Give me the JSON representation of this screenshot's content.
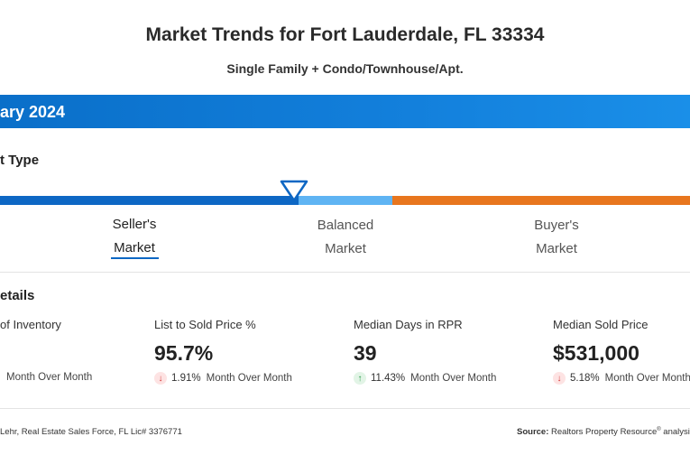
{
  "header": {
    "title": "Market Trends for Fort Lauderdale, FL 33334",
    "subtitle": "Single Family + Condo/Townhouse/Apt."
  },
  "month_bar": {
    "text": "ary 2024",
    "color": "#1380dc"
  },
  "market_type": {
    "heading": "t Type",
    "selected": "seller",
    "segments": [
      {
        "key": "seller",
        "line1": "Seller's",
        "line2": "Market",
        "color": "#0d67c4"
      },
      {
        "key": "balanced",
        "line1": "Balanced",
        "line2": "Market",
        "color": "#5fb4f3"
      },
      {
        "key": "buyer",
        "line1": "Buyer's",
        "line2": "Market",
        "color": "#e8761e"
      }
    ]
  },
  "details": {
    "heading": "etails",
    "metrics": [
      {
        "label": "of Inventory",
        "value": "",
        "change_pct": "",
        "change_dir": "",
        "change_text": "Month Over Month"
      },
      {
        "label": "List to Sold Price %",
        "value": "95.7%",
        "change_pct": "1.91%",
        "change_dir": "down",
        "change_text": "Month Over Month"
      },
      {
        "label": "Median Days in RPR",
        "value": "39",
        "change_pct": "11.43%",
        "change_dir": "up",
        "change_text": "Month Over Month"
      },
      {
        "label": "Median Sold Price",
        "value": "$531,000",
        "change_pct": "5.18%",
        "change_dir": "down",
        "change_text": "Month Over Month"
      }
    ]
  },
  "footer": {
    "left": "Lehr, Real Estate Sales Force, FL Lic# 3376771",
    "source_label": "Source:",
    "source_text": "Realtors Property Resource",
    "source_reg": "®",
    "source_suffix": "analysis"
  }
}
